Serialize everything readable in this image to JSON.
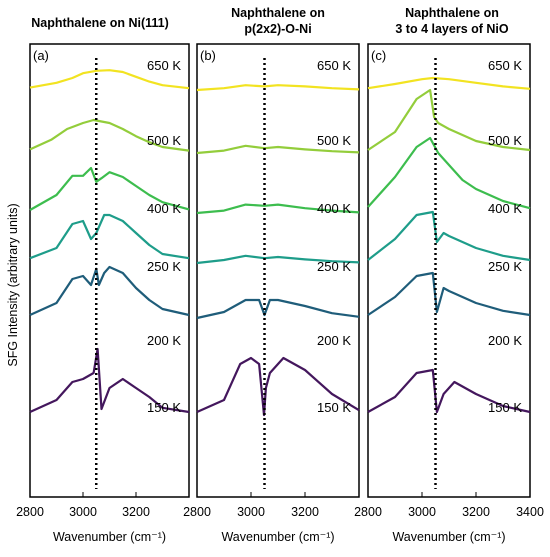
{
  "ylabel": "SFG Intensity (arbitrary units)",
  "xlabel": "Wavenumber (cm⁻¹)",
  "dotted_line_x": 3050,
  "colors": {
    "650 K": "#f2e321",
    "500 K": "#93cd3b",
    "400 K": "#3dbd4e",
    "250 K": "#1e9d8a",
    "200 K": "#1f5d7a",
    "150 K": "#44175d"
  },
  "chart_data": [
    {
      "type": "line",
      "letter": "(a)",
      "title_lines": [
        "Naphthalene on Ni(111)"
      ],
      "xlim": [
        2800,
        3400
      ],
      "xticks": [
        "2800",
        "3000",
        "3200"
      ],
      "series": [
        {
          "name": "650 K",
          "x": [
            2800,
            2900,
            2960,
            3000,
            3050,
            3100,
            3150,
            3200,
            3250,
            3300,
            3400
          ],
          "y": [
            0.04,
            0.12,
            0.2,
            0.28,
            0.32,
            0.33,
            0.3,
            0.22,
            0.14,
            0.08,
            0.03
          ]
        },
        {
          "name": "500 K",
          "x": [
            2800,
            2880,
            2940,
            3000,
            3040,
            3100,
            3150,
            3200,
            3250,
            3300,
            3400
          ],
          "y": [
            0.06,
            0.22,
            0.4,
            0.5,
            0.55,
            0.5,
            0.4,
            0.28,
            0.18,
            0.1,
            0.04
          ]
        },
        {
          "name": "400 K",
          "x": [
            2800,
            2900,
            2960,
            3000,
            3030,
            3050,
            3070,
            3100,
            3150,
            3200,
            3250,
            3300,
            3400
          ],
          "y": [
            0.05,
            0.3,
            0.62,
            0.62,
            0.75,
            0.52,
            0.58,
            0.68,
            0.6,
            0.45,
            0.3,
            0.18,
            0.06
          ]
        },
        {
          "name": "250 K",
          "x": [
            2800,
            2900,
            2960,
            3000,
            3030,
            3050,
            3080,
            3100,
            3150,
            3200,
            3250,
            3300,
            3400
          ],
          "y": [
            0.08,
            0.25,
            0.65,
            0.7,
            0.4,
            0.5,
            0.8,
            0.8,
            0.7,
            0.5,
            0.3,
            0.15,
            0.08
          ]
        },
        {
          "name": "200 K",
          "x": [
            2800,
            2900,
            2960,
            3000,
            3030,
            3050,
            3060,
            3080,
            3100,
            3150,
            3200,
            3250,
            3300,
            3400
          ],
          "y": [
            0.05,
            0.25,
            0.65,
            0.7,
            0.55,
            0.82,
            0.55,
            0.75,
            0.85,
            0.75,
            0.5,
            0.3,
            0.15,
            0.05
          ]
        },
        {
          "name": "150 K",
          "x": [
            2800,
            2900,
            2960,
            3000,
            3040,
            3055,
            3070,
            3100,
            3150,
            3200,
            3250,
            3300,
            3400
          ],
          "y": [
            0.05,
            0.25,
            0.55,
            0.6,
            0.7,
            1.1,
            0.1,
            0.45,
            0.6,
            0.45,
            0.3,
            0.12,
            0.05
          ]
        }
      ]
    },
    {
      "type": "line",
      "letter": "(b)",
      "title_lines": [
        "Naphthalene on",
        "p(2x2)-O-Ni"
      ],
      "xlim": [
        2800,
        3400
      ],
      "xticks": [
        "2800",
        "3000",
        "3200"
      ],
      "series": [
        {
          "name": "650 K",
          "x": [
            2800,
            2900,
            2980,
            3050,
            3100,
            3200,
            3300,
            3400
          ],
          "y": [
            0.0,
            0.03,
            0.08,
            0.06,
            0.08,
            0.06,
            0.03,
            0.01
          ]
        },
        {
          "name": "500 K",
          "x": [
            2800,
            2900,
            2980,
            3050,
            3100,
            3200,
            3300,
            3400
          ],
          "y": [
            0.0,
            0.04,
            0.12,
            0.08,
            0.1,
            0.06,
            0.03,
            0.01
          ]
        },
        {
          "name": "400 K",
          "x": [
            2800,
            2900,
            2980,
            3050,
            3100,
            3200,
            3300,
            3400
          ],
          "y": [
            0.0,
            0.04,
            0.14,
            0.12,
            0.14,
            0.08,
            0.04,
            0.01
          ]
        },
        {
          "name": "250 K",
          "x": [
            2800,
            2900,
            2980,
            3050,
            3100,
            3200,
            3300,
            3400
          ],
          "y": [
            0.0,
            0.05,
            0.12,
            0.08,
            0.1,
            0.06,
            0.03,
            0.01
          ]
        },
        {
          "name": "200 K",
          "x": [
            2800,
            2900,
            2980,
            3030,
            3050,
            3070,
            3100,
            3200,
            3300,
            3400
          ],
          "y": [
            0.0,
            0.1,
            0.3,
            0.3,
            0.05,
            0.3,
            0.3,
            0.2,
            0.08,
            0.02
          ]
        },
        {
          "name": "150 K",
          "x": [
            2800,
            2900,
            2960,
            3000,
            3030,
            3048,
            3055,
            3070,
            3120,
            3200,
            3300,
            3400
          ],
          "y": [
            0.05,
            0.25,
            0.85,
            0.95,
            0.85,
            0.0,
            0.45,
            0.7,
            0.95,
            0.75,
            0.35,
            0.08
          ]
        }
      ]
    },
    {
      "type": "line",
      "letter": "(c)",
      "title_lines": [
        "Naphthalene on",
        "3 to 4 layers of NiO"
      ],
      "xlim": [
        2800,
        3400
      ],
      "xticks": [
        "2800",
        "3000",
        "3200",
        "3400"
      ],
      "series": [
        {
          "name": "650 K",
          "x": [
            2800,
            2900,
            3000,
            3040,
            3100,
            3200,
            3300,
            3400
          ],
          "y": [
            0.03,
            0.1,
            0.18,
            0.2,
            0.18,
            0.12,
            0.06,
            0.02
          ]
        },
        {
          "name": "500 K",
          "x": [
            2800,
            2900,
            2980,
            3030,
            3045,
            3060,
            3100,
            3150,
            3200,
            3300,
            3400
          ],
          "y": [
            0.05,
            0.35,
            0.9,
            1.05,
            0.6,
            0.5,
            0.4,
            0.3,
            0.2,
            0.1,
            0.05
          ]
        },
        {
          "name": "400 K",
          "x": [
            2800,
            2900,
            2980,
            3030,
            3060,
            3100,
            3150,
            3200,
            3300,
            3400
          ],
          "y": [
            0.1,
            0.6,
            1.1,
            1.25,
            1.0,
            0.8,
            0.55,
            0.4,
            0.2,
            0.08
          ]
        },
        {
          "name": "250 K",
          "x": [
            2800,
            2900,
            2980,
            3040,
            3055,
            3080,
            3100,
            3150,
            3200,
            3300,
            3400
          ],
          "y": [
            0.05,
            0.4,
            0.8,
            0.85,
            0.35,
            0.5,
            0.45,
            0.35,
            0.25,
            0.12,
            0.05
          ]
        },
        {
          "name": "200 K",
          "x": [
            2800,
            2900,
            2980,
            3040,
            3055,
            3080,
            3100,
            3150,
            3200,
            3300,
            3400
          ],
          "y": [
            0.05,
            0.35,
            0.7,
            0.75,
            0.1,
            0.5,
            0.45,
            0.35,
            0.25,
            0.12,
            0.05
          ]
        },
        {
          "name": "150 K",
          "x": [
            2800,
            2900,
            2980,
            3040,
            3055,
            3080,
            3120,
            3200,
            3300,
            3400
          ],
          "y": [
            0.05,
            0.3,
            0.7,
            0.75,
            0.05,
            0.35,
            0.55,
            0.35,
            0.15,
            0.05
          ]
        }
      ]
    }
  ]
}
